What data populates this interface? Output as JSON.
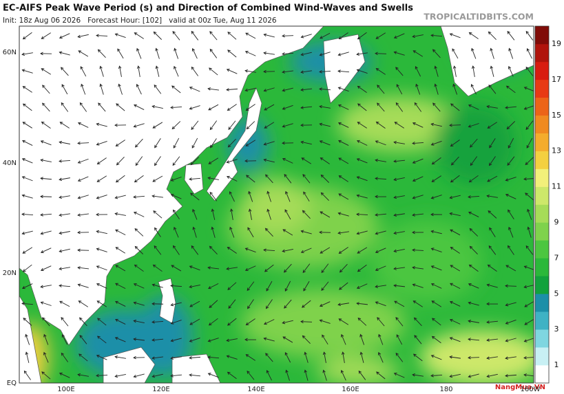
{
  "header": {
    "title": "EC-AIFS Peak Wave Period (s) and Direction of Combined Wind-Waves and Swells",
    "init": "Init: 18z Aug 06 2026   Forecast Hour: [102]   valid at 00z Tue, Aug 11 2026",
    "source": "TROPICALTIDBITS.COM"
  },
  "map": {
    "lat_labels": [
      "60N",
      "40N",
      "20N",
      "EQ"
    ],
    "lon_labels": [
      "100E",
      "120E",
      "140E",
      "160E",
      "180",
      "160W"
    ]
  },
  "colorbar": {
    "labels": [
      1,
      3,
      5,
      7,
      9,
      11,
      13,
      15,
      17,
      19
    ],
    "colors": [
      "#ffffff",
      "#c8f0f4",
      "#7fd6e0",
      "#3fb2c4",
      "#1c8fa8",
      "#12a23c",
      "#2bb83a",
      "#4cc640",
      "#7fd24c",
      "#a6dc58",
      "#cde86a",
      "#f2f07a",
      "#f4d040",
      "#f4ac2c",
      "#f08a20",
      "#ec6418",
      "#e83a14",
      "#d81c10",
      "#b0140c",
      "#800c08"
    ]
  },
  "watermark": "NangMua.VN"
}
